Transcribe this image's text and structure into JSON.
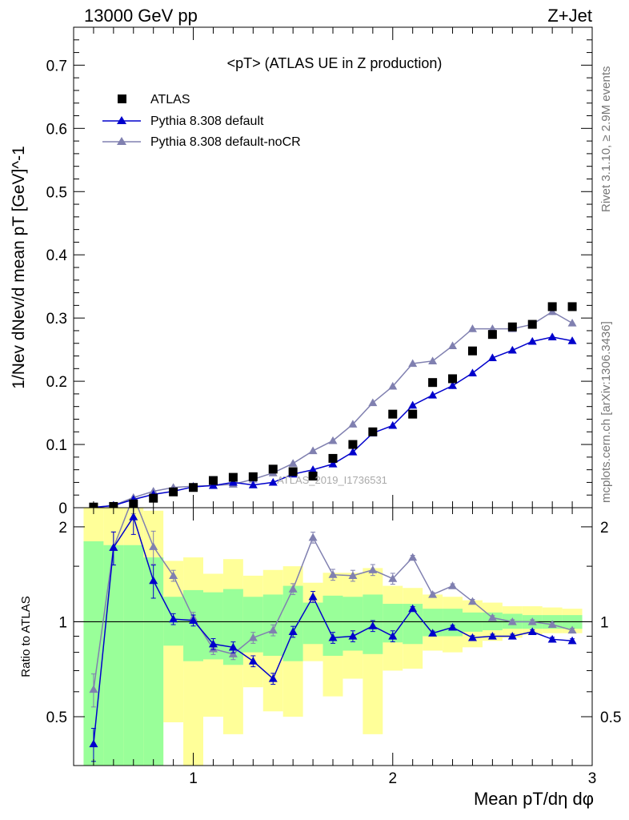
{
  "header": {
    "left": "13000 GeV pp",
    "right": "Z+Jet"
  },
  "side_labels": {
    "rivet": "Rivet 3.1.10, ≥ 2.9M events",
    "mcplots": "mcplots.cern.ch [arXiv:1306.3436]"
  },
  "watermark": "ATLAS_2019_I1736531",
  "colors": {
    "atlas": "#000000",
    "default": "#0000cc",
    "nocr": "#8080b0",
    "band_outer": "#ffff99",
    "band_inner": "#99ff99"
  },
  "chart_data": [
    {
      "type": "scatter",
      "title": "<pT> (ATLAS UE in Z production)",
      "xlabel": "Mean pT/dη dφ",
      "ylabel": "1/Nev dNev/d mean pT [GeV]^-1",
      "xlim": [
        0.4,
        3.0
      ],
      "ylim": [
        0,
        0.76
      ],
      "yticks": [
        "0",
        "0.1",
        "0.2",
        "0.3",
        "0.4",
        "0.5",
        "0.6",
        "0.7"
      ],
      "x": [
        0.5,
        0.6,
        0.7,
        0.8,
        0.9,
        1.0,
        1.1,
        1.2,
        1.3,
        1.4,
        1.5,
        1.6,
        1.7,
        1.8,
        1.9,
        2.0,
        2.1,
        2.2,
        2.3,
        2.4,
        2.5,
        2.6,
        2.7,
        2.8,
        2.9
      ],
      "series": [
        {
          "name": "ATLAS",
          "marker": "square",
          "values": [
            0.001,
            0.002,
            0.006,
            0.015,
            0.025,
            0.032,
            0.043,
            0.048,
            0.049,
            0.061,
            0.057,
            0.05,
            0.078,
            0.1,
            0.12,
            0.148,
            0.148,
            0.198,
            0.204,
            0.248,
            0.274,
            0.286,
            0.29,
            0.318,
            0.318
          ]
        },
        {
          "name": "Pythia 8.308 default",
          "marker": "triangle",
          "values": [
            0.0004,
            0.0035,
            0.013,
            0.021,
            0.026,
            0.033,
            0.035,
            0.04,
            0.036,
            0.04,
            0.053,
            0.06,
            0.069,
            0.088,
            0.118,
            0.13,
            0.162,
            0.178,
            0.193,
            0.213,
            0.237,
            0.249,
            0.263,
            0.27,
            0.264
          ]
        },
        {
          "name": "Pythia 8.308 default-noCR",
          "marker": "triangle",
          "values": [
            0.0006,
            0.0035,
            0.016,
            0.026,
            0.032,
            0.034,
            0.035,
            0.037,
            0.045,
            0.055,
            0.07,
            0.09,
            0.106,
            0.132,
            0.166,
            0.192,
            0.228,
            0.232,
            0.256,
            0.283,
            0.283,
            0.283,
            0.29,
            0.31,
            0.292
          ]
        }
      ]
    },
    {
      "type": "line",
      "ylabel": "Ratio to ATLAS",
      "xlabel": "Mean pT/dη dφ",
      "xlim": [
        0.4,
        3.0
      ],
      "ylim": [
        0.35,
        2.3
      ],
      "xticks": [
        "1",
        "2",
        "3"
      ],
      "yticks": [
        "0.5",
        "1",
        "2"
      ],
      "x": [
        0.5,
        0.6,
        0.7,
        0.8,
        0.9,
        1.0,
        1.1,
        1.2,
        1.3,
        1.4,
        1.5,
        1.6,
        1.7,
        1.8,
        1.9,
        2.0,
        2.1,
        2.2,
        2.3,
        2.4,
        2.5,
        2.6,
        2.7,
        2.8,
        2.9
      ],
      "series": [
        {
          "name": "Pythia 8.308 default",
          "values": [
            0.41,
            1.72,
            2.15,
            1.35,
            1.02,
            1.01,
            0.85,
            0.83,
            0.75,
            0.66,
            0.93,
            1.2,
            0.89,
            0.9,
            0.97,
            0.9,
            1.1,
            0.92,
            0.96,
            0.89,
            0.9,
            0.9,
            0.93,
            0.88,
            0.87
          ]
        },
        {
          "name": "Pythia 8.308 default-noCR",
          "values": [
            0.61,
            1.72,
            2.5,
            1.73,
            1.4,
            1.03,
            0.82,
            0.79,
            0.89,
            0.94,
            1.27,
            1.85,
            1.41,
            1.4,
            1.46,
            1.37,
            1.6,
            1.22,
            1.3,
            1.16,
            1.03,
            1.0,
            1.0,
            0.98,
            0.94
          ]
        }
      ],
      "bands": {
        "outer": [
          [
            0.3,
            2.4
          ],
          [
            0.3,
            2.3
          ],
          [
            0.3,
            2.3
          ],
          [
            0.3,
            2.25
          ],
          [
            0.48,
            1.56
          ],
          [
            0.3,
            1.6
          ],
          [
            0.5,
            1.42
          ],
          [
            0.44,
            1.58
          ],
          [
            0.62,
            1.4
          ],
          [
            0.52,
            1.46
          ],
          [
            0.5,
            1.5
          ],
          [
            0.75,
            1.33
          ],
          [
            0.58,
            1.43
          ],
          [
            0.66,
            1.43
          ],
          [
            0.44,
            1.48
          ],
          [
            0.7,
            1.3
          ],
          [
            0.71,
            1.28
          ],
          [
            0.81,
            1.22
          ],
          [
            0.8,
            1.2
          ],
          [
            0.83,
            1.17
          ],
          [
            0.87,
            1.15
          ],
          [
            0.89,
            1.12
          ],
          [
            0.91,
            1.12
          ],
          [
            0.92,
            1.11
          ],
          [
            0.92,
            1.1
          ]
        ],
        "inner": [
          [
            0.3,
            1.8
          ],
          [
            0.3,
            1.75
          ],
          [
            0.3,
            1.75
          ],
          [
            0.3,
            1.6
          ],
          [
            0.84,
            1.2
          ],
          [
            0.75,
            1.26
          ],
          [
            0.76,
            1.24
          ],
          [
            0.73,
            1.27
          ],
          [
            0.8,
            1.2
          ],
          [
            0.78,
            1.22
          ],
          [
            0.75,
            1.3
          ],
          [
            0.85,
            1.15
          ],
          [
            0.78,
            1.21
          ],
          [
            0.81,
            1.2
          ],
          [
            0.79,
            1.22
          ],
          [
            0.86,
            1.14
          ],
          [
            0.85,
            1.14
          ],
          [
            0.9,
            1.1
          ],
          [
            0.9,
            1.1
          ],
          [
            0.93,
            1.07
          ],
          [
            0.94,
            1.07
          ],
          [
            0.95,
            1.06
          ],
          [
            0.95,
            1.05
          ],
          [
            0.95,
            1.05
          ],
          [
            0.95,
            1.05
          ]
        ]
      }
    }
  ]
}
